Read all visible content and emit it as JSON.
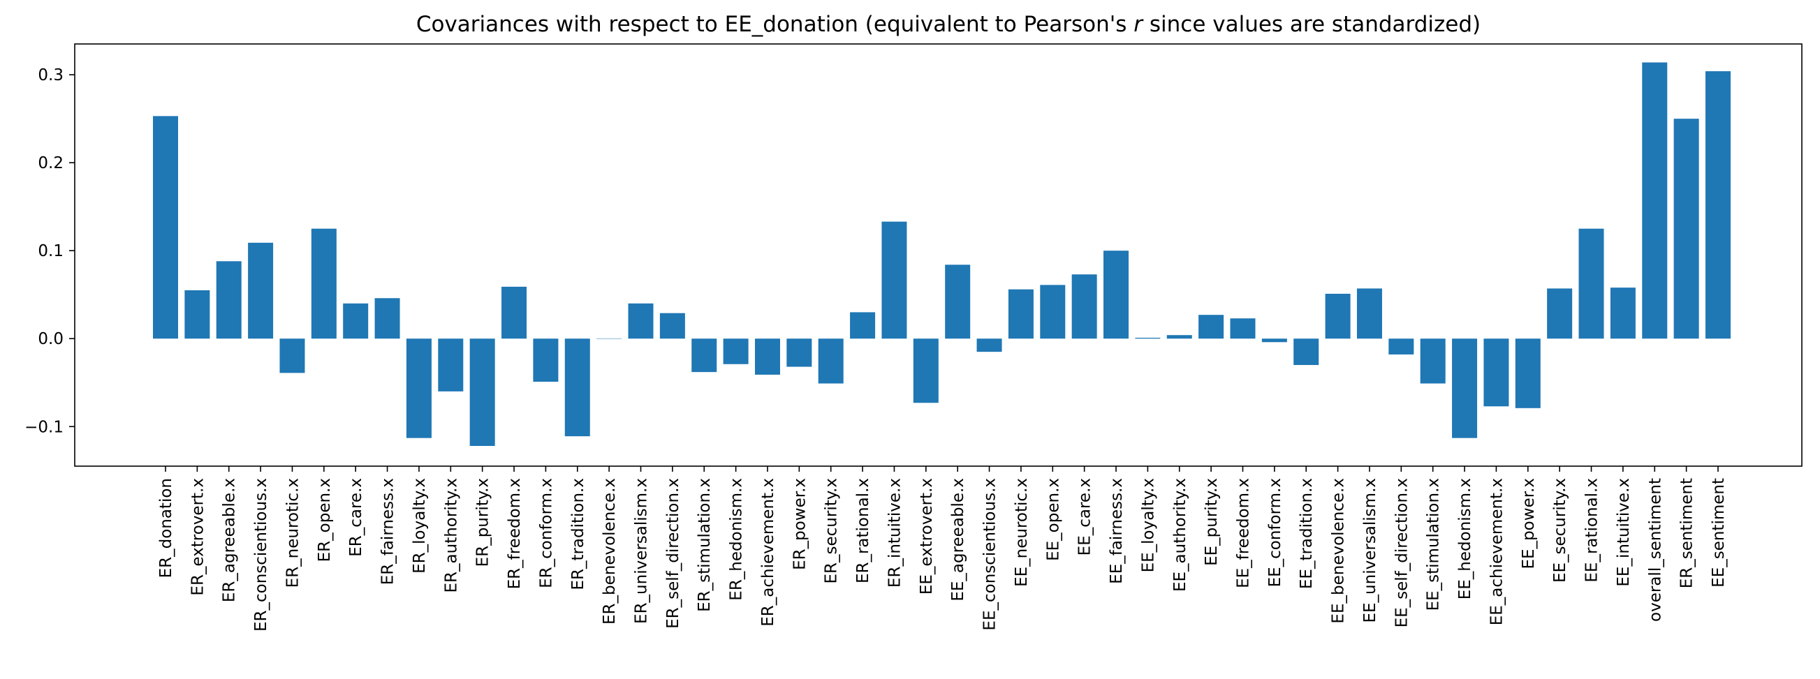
{
  "chart_data": {
    "type": "bar",
    "title_parts": [
      "Covariances with respect to EE_donation (equivalent to Pearson's ",
      "r",
      " since values are standardized)"
    ],
    "xlabel": "",
    "ylabel": "",
    "ylim": [
      -0.145,
      0.335
    ],
    "yticks": [
      -0.1,
      0.0,
      0.1,
      0.2,
      0.3
    ],
    "ytick_labels": [
      "−0.1",
      "0.0",
      "0.1",
      "0.2",
      "0.3"
    ],
    "bar_color": "#1f77b4",
    "grid": false,
    "categories": [
      "ER_donation",
      "ER_extrovert.x",
      "ER_agreeable.x",
      "ER_conscientious.x",
      "ER_neurotic.x",
      "ER_open.x",
      "ER_care.x",
      "ER_fairness.x",
      "ER_loyalty.x",
      "ER_authority.x",
      "ER_purity.x",
      "ER_freedom.x",
      "ER_conform.x",
      "ER_tradition.x",
      "ER_benevolence.x",
      "ER_universalism.x",
      "ER_self_direction.x",
      "ER_stimulation.x",
      "ER_hedonism.x",
      "ER_achievement.x",
      "ER_power.x",
      "ER_security.x",
      "ER_rational.x",
      "ER_intuitive.x",
      "EE_extrovert.x",
      "EE_agreeable.x",
      "EE_conscientious.x",
      "EE_neurotic.x",
      "EE_open.x",
      "EE_care.x",
      "EE_fairness.x",
      "EE_loyalty.x",
      "EE_authority.x",
      "EE_purity.x",
      "EE_freedom.x",
      "EE_conform.x",
      "EE_tradition.x",
      "EE_benevolence.x",
      "EE_universalism.x",
      "EE_self_direction.x",
      "EE_stimulation.x",
      "EE_hedonism.x",
      "EE_achievement.x",
      "EE_power.x",
      "EE_security.x",
      "EE_rational.x",
      "EE_intuitive.x",
      "overall_sentiment",
      "ER_sentiment",
      "EE_sentiment"
    ],
    "values": [
      0.253,
      0.055,
      0.088,
      0.109,
      -0.039,
      0.125,
      0.04,
      0.046,
      -0.113,
      -0.06,
      -0.122,
      0.059,
      -0.049,
      -0.111,
      0.0,
      0.04,
      0.029,
      -0.038,
      -0.029,
      -0.041,
      -0.032,
      -0.051,
      0.03,
      0.133,
      -0.073,
      0.084,
      -0.015,
      0.056,
      0.061,
      0.073,
      0.1,
      0.001,
      0.004,
      0.027,
      0.023,
      -0.004,
      -0.03,
      0.051,
      0.057,
      -0.018,
      -0.051,
      -0.113,
      -0.077,
      -0.079,
      0.057,
      0.125,
      0.058,
      0.314,
      0.25,
      0.304
    ]
  }
}
